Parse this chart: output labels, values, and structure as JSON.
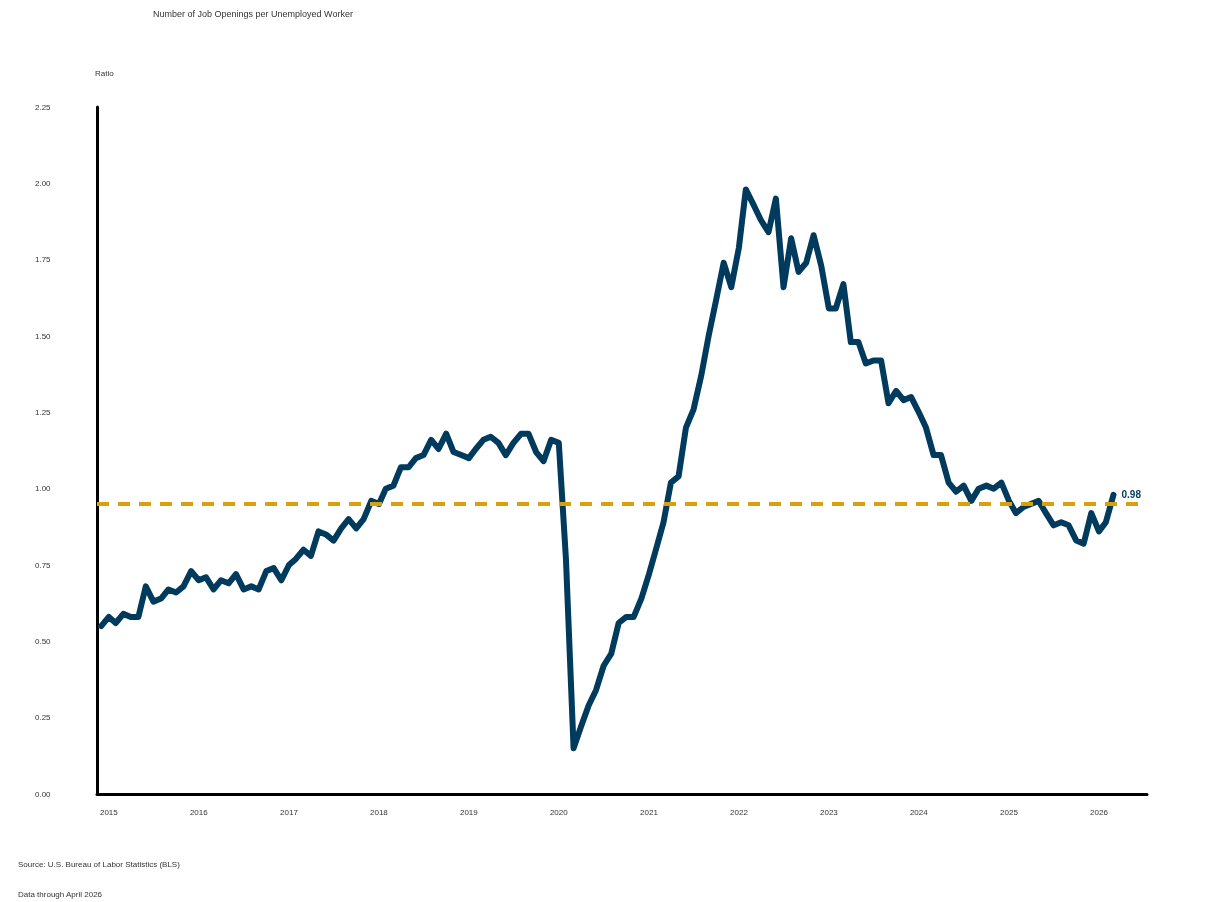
{
  "chart_data": {
    "type": "line",
    "title": "Number of Job Openings per Unemployed Worker",
    "ylabel": "Ratio",
    "x": [
      "2015-01",
      "2015-02",
      "2015-03",
      "2015-04",
      "2015-05",
      "2015-06",
      "2015-07",
      "2015-08",
      "2015-09",
      "2015-10",
      "2015-11",
      "2015-12",
      "2016-01",
      "2016-02",
      "2016-03",
      "2016-04",
      "2016-05",
      "2016-06",
      "2016-07",
      "2016-08",
      "2016-09",
      "2016-10",
      "2016-11",
      "2016-12",
      "2017-01",
      "2017-02",
      "2017-03",
      "2017-04",
      "2017-05",
      "2017-06",
      "2017-07",
      "2017-08",
      "2017-09",
      "2017-10",
      "2017-11",
      "2017-12",
      "2018-01",
      "2018-02",
      "2018-03",
      "2018-04",
      "2018-05",
      "2018-06",
      "2018-07",
      "2018-08",
      "2018-09",
      "2018-10",
      "2018-11",
      "2018-12",
      "2019-01",
      "2019-02",
      "2019-03",
      "2019-04",
      "2019-05",
      "2019-06",
      "2019-07",
      "2019-08",
      "2019-09",
      "2019-10",
      "2019-11",
      "2019-12",
      "2020-01",
      "2020-02",
      "2020-03",
      "2020-04",
      "2020-05",
      "2020-06",
      "2020-07",
      "2020-08",
      "2020-09",
      "2020-10",
      "2020-11",
      "2020-12",
      "2021-01",
      "2021-02",
      "2021-03",
      "2021-04",
      "2021-05",
      "2021-06",
      "2021-07",
      "2021-08",
      "2021-09",
      "2021-10",
      "2021-11",
      "2021-12",
      "2022-01",
      "2022-02",
      "2022-03",
      "2022-04",
      "2022-05",
      "2022-06",
      "2022-07",
      "2022-08",
      "2022-09",
      "2022-10",
      "2022-11",
      "2022-12",
      "2023-01",
      "2023-02",
      "2023-03",
      "2023-04",
      "2023-05",
      "2023-06",
      "2023-07",
      "2023-08",
      "2023-09",
      "2023-10",
      "2023-11",
      "2023-12",
      "2024-01",
      "2024-02",
      "2024-03",
      "2024-04",
      "2024-05",
      "2024-06",
      "2024-07",
      "2024-08",
      "2024-09",
      "2024-10",
      "2024-11",
      "2024-12",
      "2025-01",
      "2025-02",
      "2025-03",
      "2025-04",
      "2025-05",
      "2025-06",
      "2025-07",
      "2025-08",
      "2025-09",
      "2025-10",
      "2025-11",
      "2025-12",
      "2026-01",
      "2026-02",
      "2026-03",
      "2026-04"
    ],
    "series": [
      {
        "color": "#003a5d",
        "values": [
          0.55,
          0.58,
          0.56,
          0.59,
          0.58,
          0.58,
          0.68,
          0.63,
          0.64,
          0.67,
          0.66,
          0.68,
          0.73,
          0.7,
          0.71,
          0.67,
          0.7,
          0.69,
          0.72,
          0.67,
          0.68,
          0.67,
          0.73,
          0.74,
          0.7,
          0.75,
          0.77,
          0.8,
          0.78,
          0.86,
          0.85,
          0.83,
          0.87,
          0.9,
          0.87,
          0.9,
          0.96,
          0.95,
          1.0,
          1.01,
          1.07,
          1.07,
          1.1,
          1.11,
          1.16,
          1.13,
          1.18,
          1.12,
          1.11,
          1.1,
          1.13,
          1.16,
          1.17,
          1.15,
          1.11,
          1.15,
          1.18,
          1.18,
          1.12,
          1.09,
          1.16,
          1.15,
          0.77,
          0.15,
          0.22,
          0.29,
          0.34,
          0.42,
          0.46,
          0.56,
          0.58,
          0.58,
          0.64,
          0.72,
          0.8,
          0.89,
          1.02,
          1.04,
          1.2,
          1.26,
          1.37,
          1.5,
          1.62,
          1.74,
          1.66,
          1.79,
          1.98,
          1.93,
          1.88,
          1.84,
          1.95,
          1.66,
          1.82,
          1.71,
          1.74,
          1.83,
          1.73,
          1.59,
          1.59,
          1.67,
          1.48,
          1.48,
          1.41,
          1.42,
          1.42,
          1.28,
          1.32,
          1.29,
          1.3,
          1.25,
          1.2,
          1.11,
          1.11,
          1.02,
          0.99,
          1.01,
          0.96,
          1.0,
          1.01,
          1.0,
          1.02,
          0.96,
          0.92,
          0.94,
          0.95,
          0.96,
          0.92,
          0.88,
          0.89,
          0.88,
          0.83,
          0.82,
          0.92,
          0.86,
          0.89,
          0.98
        ]
      }
    ],
    "xlim": [
      "2014-12-15",
      "2026-08-15"
    ],
    "xticks": [
      {
        "value": "2015-02",
        "label": "2015"
      },
      {
        "value": "2016-02",
        "label": "2016"
      },
      {
        "value": "2017-02",
        "label": "2017"
      },
      {
        "value": "2018-02",
        "label": "2018"
      },
      {
        "value": "2019-02",
        "label": "2019"
      },
      {
        "value": "2020-02",
        "label": "2020"
      },
      {
        "value": "2021-02",
        "label": "2021"
      },
      {
        "value": "2022-02",
        "label": "2022"
      },
      {
        "value": "2023-02",
        "label": "2023"
      },
      {
        "value": "2024-02",
        "label": "2024"
      },
      {
        "value": "2025-02",
        "label": "2025"
      },
      {
        "value": "2026-02",
        "label": "2026"
      }
    ],
    "ylim": [
      0,
      2.25
    ],
    "yticks": [
      {
        "value": 0,
        "label": "0.00"
      },
      {
        "value": 0.25,
        "label": "0.25"
      },
      {
        "value": 0.5,
        "label": "0.50"
      },
      {
        "value": 0.75,
        "label": "0.75"
      },
      {
        "value": 1,
        "label": "1.00"
      },
      {
        "value": 1.25,
        "label": "1.25"
      },
      {
        "value": 1.5,
        "label": "1.50"
      },
      {
        "value": 1.75,
        "label": "1.75"
      },
      {
        "value": 2,
        "label": "2.00"
      },
      {
        "value": 2.25,
        "label": "2.25"
      }
    ],
    "ref_lines": [
      {
        "axis": "y",
        "value": 0.95,
        "color": "#d9a00b",
        "line_style": "dashed"
      }
    ],
    "annotations": [
      {
        "text": "0.98",
        "x": "2026-04",
        "y": 0.98
      },
      "Source: U.S. Bureau of Labor Statistics (BLS)",
      "Data through April 2026"
    ],
    "grid": false,
    "marker": "none",
    "line_style": "solid"
  }
}
